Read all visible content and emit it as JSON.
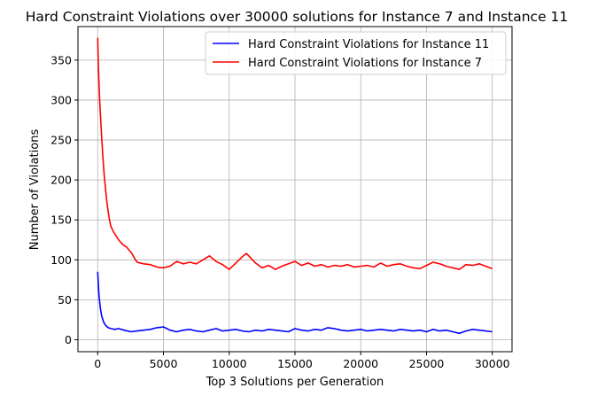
{
  "chart_data": {
    "type": "line",
    "title": "Hard Constraint Violations over 30000 solutions for Instance 7 and Instance 11",
    "xlabel": "Top 3 Solutions per Generation",
    "ylabel": "Number of Violations",
    "xlim": [
      -1500,
      31500
    ],
    "ylim": [
      -15,
      392
    ],
    "xticks": [
      0,
      5000,
      10000,
      15000,
      20000,
      25000,
      30000
    ],
    "xtick_labels": [
      "0",
      "5000",
      "10000",
      "15000",
      "20000",
      "25000",
      "30000"
    ],
    "yticks": [
      0,
      50,
      100,
      150,
      200,
      250,
      300,
      350
    ],
    "ytick_labels": [
      "0",
      "50",
      "100",
      "150",
      "200",
      "250",
      "300",
      "350"
    ],
    "grid": true,
    "legend_position": "top-right",
    "series": [
      {
        "name": "Hard Constraint Violations for Instance 11",
        "color": "#0000ff",
        "x": [
          0,
          50,
          100,
          200,
          300,
          450,
          600,
          800,
          1000,
          1300,
          1600,
          2000,
          2500,
          3000,
          3500,
          4000,
          4500,
          5000,
          5500,
          6000,
          6500,
          7000,
          7500,
          8000,
          8500,
          9000,
          9500,
          10000,
          10500,
          11000,
          11500,
          12000,
          12500,
          13000,
          13500,
          14000,
          14500,
          15000,
          15500,
          16000,
          16500,
          17000,
          17500,
          18000,
          18500,
          19000,
          19500,
          20000,
          20500,
          21000,
          21500,
          22000,
          22500,
          23000,
          23500,
          24000,
          24500,
          25000,
          25500,
          26000,
          26500,
          27000,
          27500,
          28000,
          28500,
          29000,
          29500,
          30000
        ],
        "y": [
          85,
          70,
          55,
          40,
          30,
          22,
          18,
          15,
          14,
          13,
          14,
          12,
          10,
          11,
          12,
          13,
          15,
          16,
          12,
          10,
          12,
          13,
          11,
          10,
          12,
          14,
          11,
          12,
          13,
          11,
          10,
          12,
          11,
          13,
          12,
          11,
          10,
          14,
          12,
          11,
          13,
          12,
          15,
          14,
          12,
          11,
          12,
          13,
          11,
          12,
          13,
          12,
          11,
          13,
          12,
          11,
          12,
          10,
          13,
          11,
          12,
          10,
          8,
          11,
          13,
          12,
          11,
          10
        ]
      },
      {
        "name": "Hard Constraint Violations for Instance 7",
        "color": "#ff0000",
        "x": [
          0,
          50,
          100,
          150,
          200,
          300,
          400,
          500,
          600,
          700,
          800,
          900,
          1000,
          1200,
          1400,
          1600,
          1800,
          2000,
          2200,
          2400,
          2600,
          2800,
          3000,
          3500,
          4000,
          4500,
          5000,
          5500,
          6000,
          6500,
          7000,
          7500,
          8000,
          8500,
          9000,
          9500,
          10000,
          10500,
          11000,
          11300,
          11600,
          12000,
          12500,
          13000,
          13500,
          14000,
          14500,
          15000,
          15500,
          16000,
          16500,
          17000,
          17500,
          18000,
          18500,
          19000,
          19500,
          20000,
          20500,
          21000,
          21500,
          22000,
          22500,
          23000,
          23500,
          24000,
          24500,
          25000,
          25500,
          26000,
          26500,
          27000,
          27500,
          28000,
          28500,
          29000,
          29500,
          30000
        ],
        "y": [
          378,
          345,
          320,
          300,
          285,
          255,
          228,
          205,
          188,
          172,
          160,
          150,
          142,
          135,
          130,
          125,
          121,
          118,
          116,
          112,
          108,
          102,
          97,
          95,
          94,
          91,
          90,
          92,
          98,
          95,
          97,
          95,
          100,
          105,
          98,
          94,
          88,
          96,
          104,
          108,
          103,
          96,
          90,
          93,
          88,
          92,
          95,
          98,
          93,
          96,
          92,
          94,
          91,
          93,
          92,
          94,
          91,
          92,
          93,
          91,
          96,
          92,
          94,
          95,
          92,
          90,
          89,
          93,
          97,
          95,
          92,
          90,
          88,
          94,
          93,
          95,
          92,
          89
        ]
      }
    ]
  }
}
